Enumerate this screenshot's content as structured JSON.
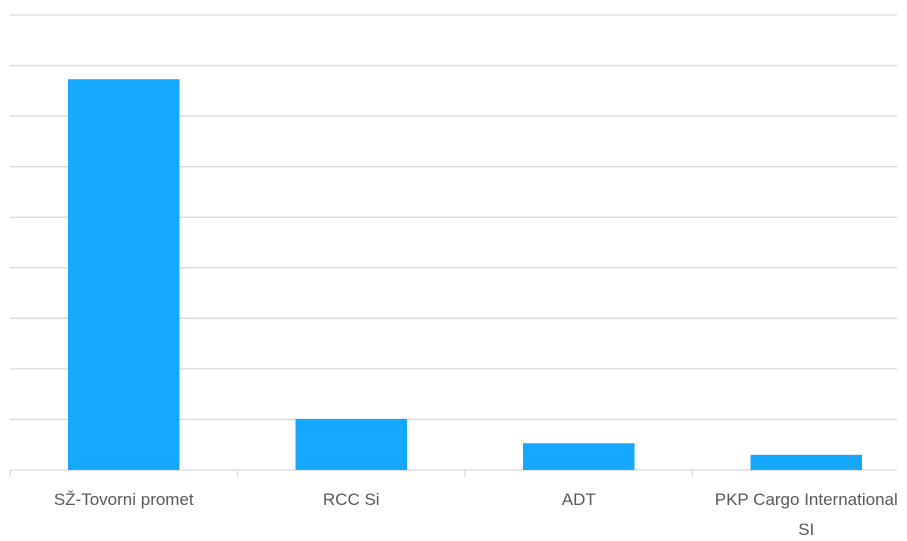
{
  "chart_data": {
    "type": "bar",
    "categories": [
      "SŽ-Tovorni promet",
      "RCC Si",
      "ADT",
      "PKP Cargo International SI"
    ],
    "values": [
      7.73,
      1.01,
      0.53,
      0.3
    ],
    "color": "#16a8fe",
    "ylim": [
      0,
      9
    ],
    "yticks": [
      0,
      1,
      2,
      3,
      4,
      5,
      6,
      7,
      8,
      9
    ],
    "grid": true,
    "ytick_labels": false
  }
}
